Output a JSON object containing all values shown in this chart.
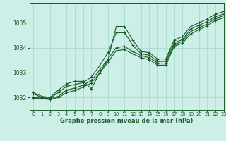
{
  "background_color": "#ceeee8",
  "grid_color": "#aaddcc",
  "line_color": "#1a5c2a",
  "xlabel": "Graphe pression niveau de la mer (hPa)",
  "xlim": [
    -0.5,
    23
  ],
  "ylim": [
    1031.5,
    1035.8
  ],
  "yticks": [
    1032,
    1033,
    1034,
    1035
  ],
  "xticks": [
    0,
    1,
    2,
    3,
    4,
    5,
    6,
    7,
    8,
    9,
    10,
    11,
    12,
    13,
    14,
    15,
    16,
    17,
    18,
    19,
    20,
    21,
    22,
    23
  ],
  "series": [
    {
      "x": [
        0,
        1,
        2,
        3,
        4,
        5,
        6,
        7,
        8,
        9,
        10,
        11,
        12,
        13,
        14,
        15,
        16,
        17,
        18,
        19,
        20,
        21,
        22,
        23
      ],
      "y": [
        1032.2,
        1032.05,
        1032.0,
        1032.3,
        1032.55,
        1032.65,
        1032.65,
        1032.35,
        1033.0,
        1033.5,
        1034.85,
        1034.85,
        1034.3,
        1033.85,
        1033.8,
        1033.55,
        1033.55,
        1034.3,
        1034.45,
        1034.85,
        1035.0,
        1035.15,
        1035.35,
        1035.45
      ],
      "marker": "+"
    },
    {
      "x": [
        0,
        1,
        2,
        3,
        4,
        5,
        6,
        7,
        8,
        9,
        10,
        11,
        12,
        13,
        14,
        15,
        16,
        17,
        18,
        19,
        20,
        21,
        22,
        23
      ],
      "y": [
        1032.15,
        1032.0,
        1031.98,
        1032.2,
        1032.45,
        1032.52,
        1032.6,
        1032.82,
        1033.28,
        1033.8,
        1034.6,
        1034.6,
        1034.1,
        1033.75,
        1033.7,
        1033.45,
        1033.45,
        1034.2,
        1034.32,
        1034.75,
        1034.9,
        1035.05,
        1035.25,
        1035.35
      ],
      "marker": "+"
    },
    {
      "x": [
        0,
        1,
        2,
        3,
        4,
        5,
        6,
        7,
        8,
        9,
        10,
        11,
        12,
        13,
        14,
        15,
        16,
        17,
        18,
        19,
        20,
        21,
        22,
        23
      ],
      "y": [
        1032.0,
        1031.98,
        1031.95,
        1032.05,
        1032.3,
        1032.38,
        1032.5,
        1032.68,
        1033.1,
        1033.55,
        1034.0,
        1034.05,
        1033.85,
        1033.68,
        1033.6,
        1033.38,
        1033.38,
        1034.12,
        1034.25,
        1034.65,
        1034.8,
        1034.95,
        1035.18,
        1035.28
      ],
      "marker": "+"
    },
    {
      "x": [
        0,
        1,
        2,
        3,
        4,
        5,
        6,
        7,
        8,
        9,
        10,
        11,
        12,
        13,
        14,
        15,
        16,
        17,
        18,
        19,
        20,
        21,
        22,
        23
      ],
      "y": [
        1031.98,
        1031.95,
        1031.92,
        1032.0,
        1032.2,
        1032.28,
        1032.42,
        1032.58,
        1032.98,
        1033.42,
        1033.88,
        1033.92,
        1033.75,
        1033.6,
        1033.52,
        1033.3,
        1033.3,
        1034.05,
        1034.18,
        1034.55,
        1034.72,
        1034.88,
        1035.1,
        1035.2
      ],
      "marker": "+"
    }
  ]
}
